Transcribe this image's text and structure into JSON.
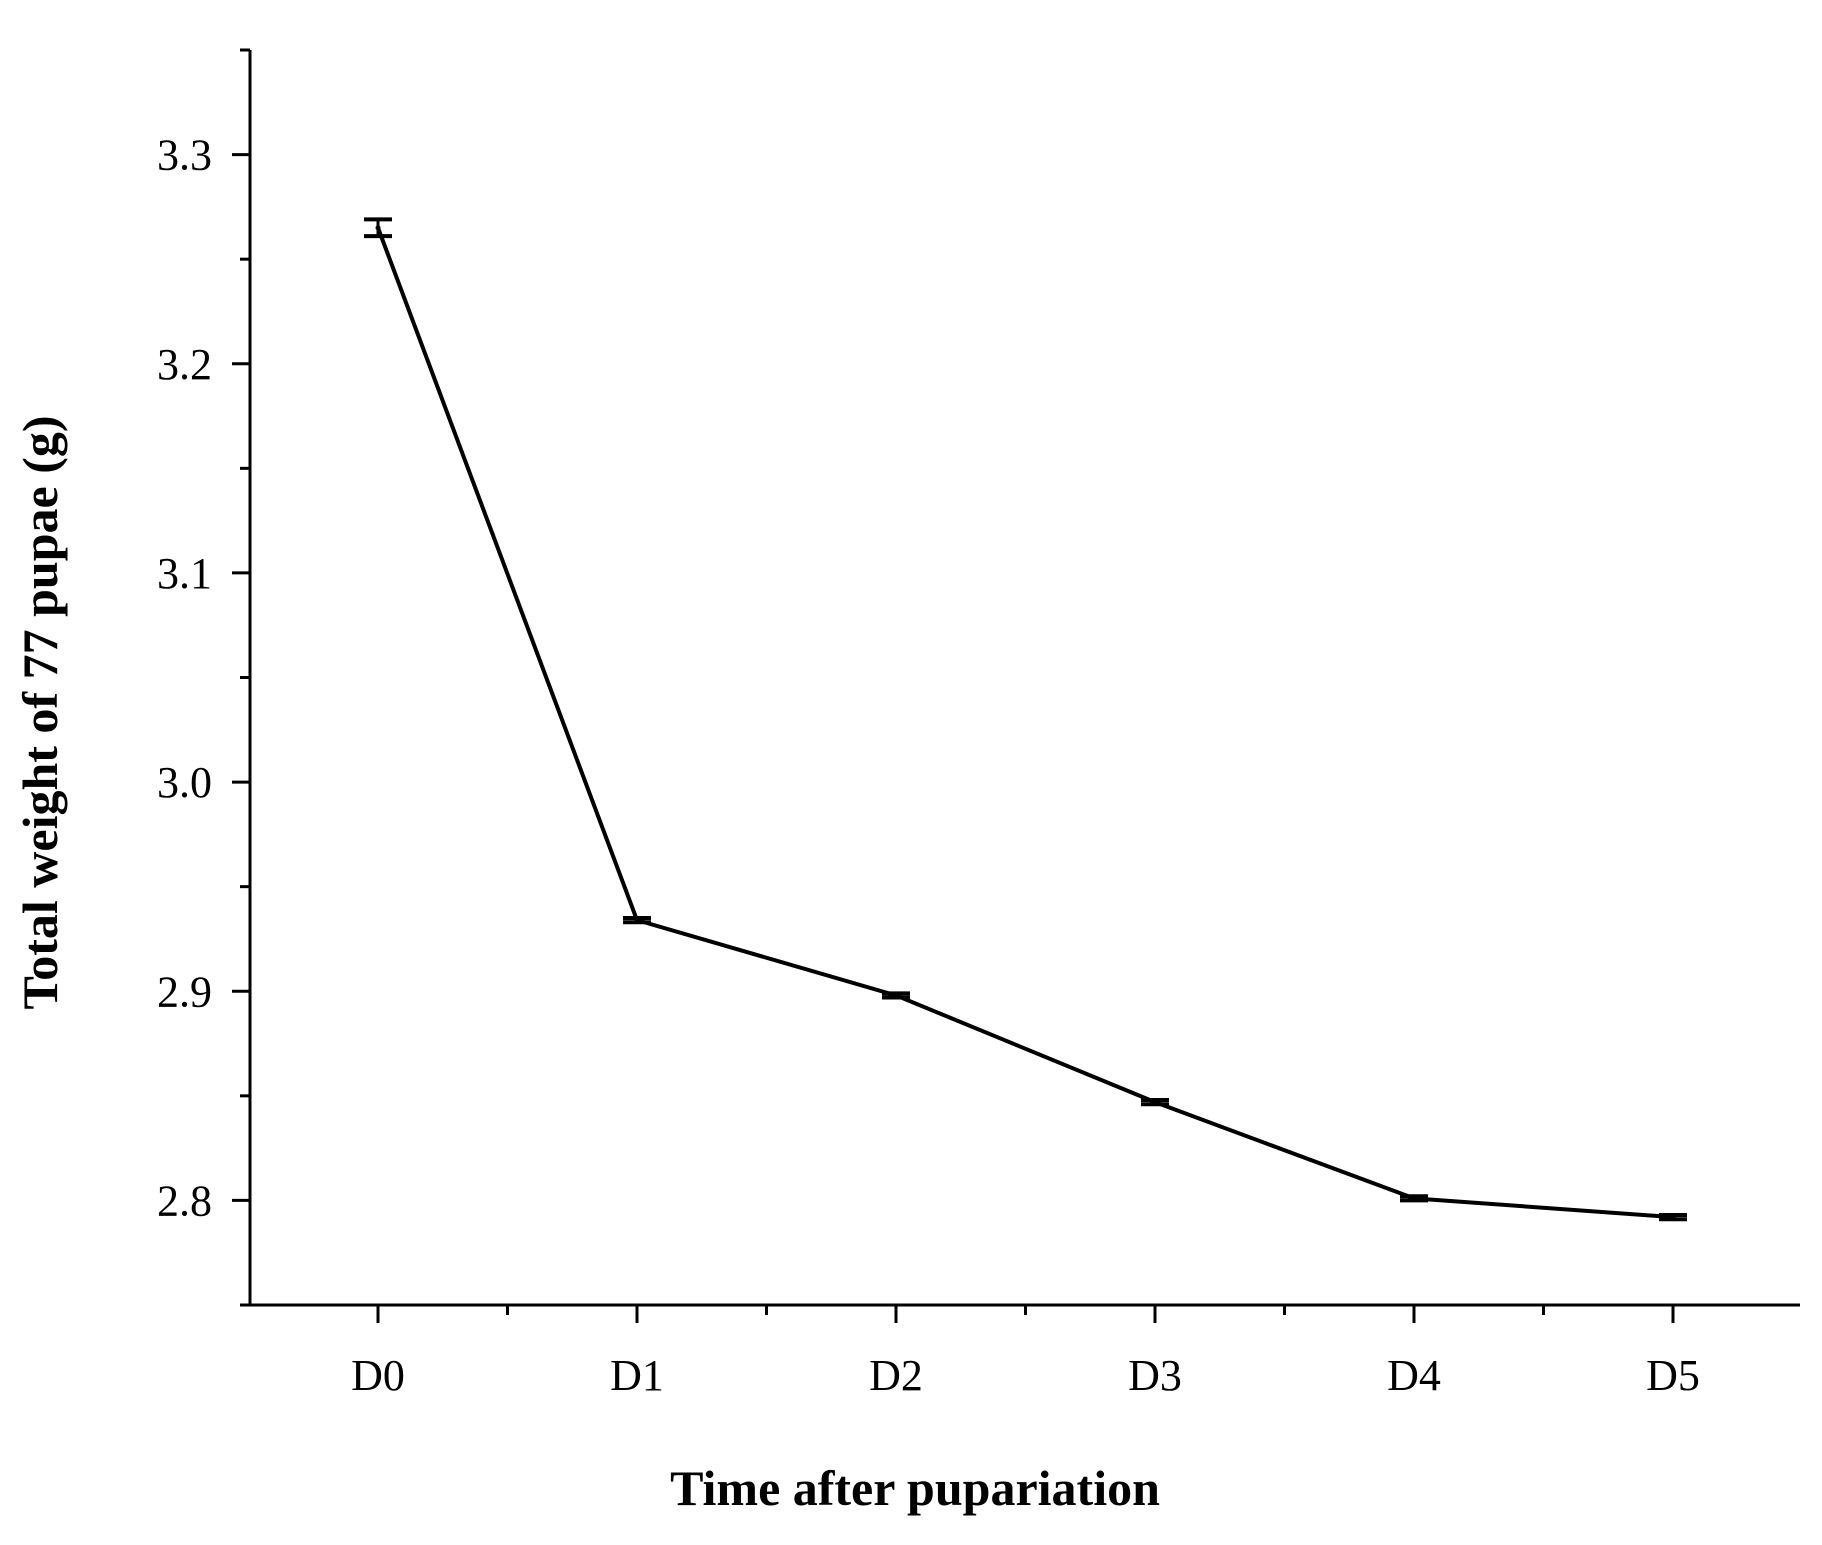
{
  "chart_data": {
    "type": "line",
    "title": "",
    "xlabel": "Time after pupariation",
    "ylabel": "Total weight of 77 pupae (g)",
    "categories": [
      "D0",
      "D1",
      "D2",
      "D3",
      "D4",
      "D5"
    ],
    "series": [
      {
        "values": [
          3.265,
          2.934,
          2.898,
          2.847,
          2.801,
          2.792
        ],
        "error": [
          0.004,
          0.001,
          0.001,
          0.001,
          0.001,
          0.001
        ]
      }
    ],
    "ylim": [
      2.75,
      3.35
    ],
    "yticks": [
      2.8,
      2.9,
      3.0,
      3.1,
      3.2,
      3.3
    ],
    "ytick_labels": [
      "2.8",
      "2.9",
      "3.0",
      "3.1",
      "3.2",
      "3.3"
    ],
    "y_minor_step": 0.05,
    "grid": false,
    "legend": "none",
    "colors": {
      "line": "#000000",
      "axis": "#000000",
      "background": "#ffffff"
    }
  }
}
